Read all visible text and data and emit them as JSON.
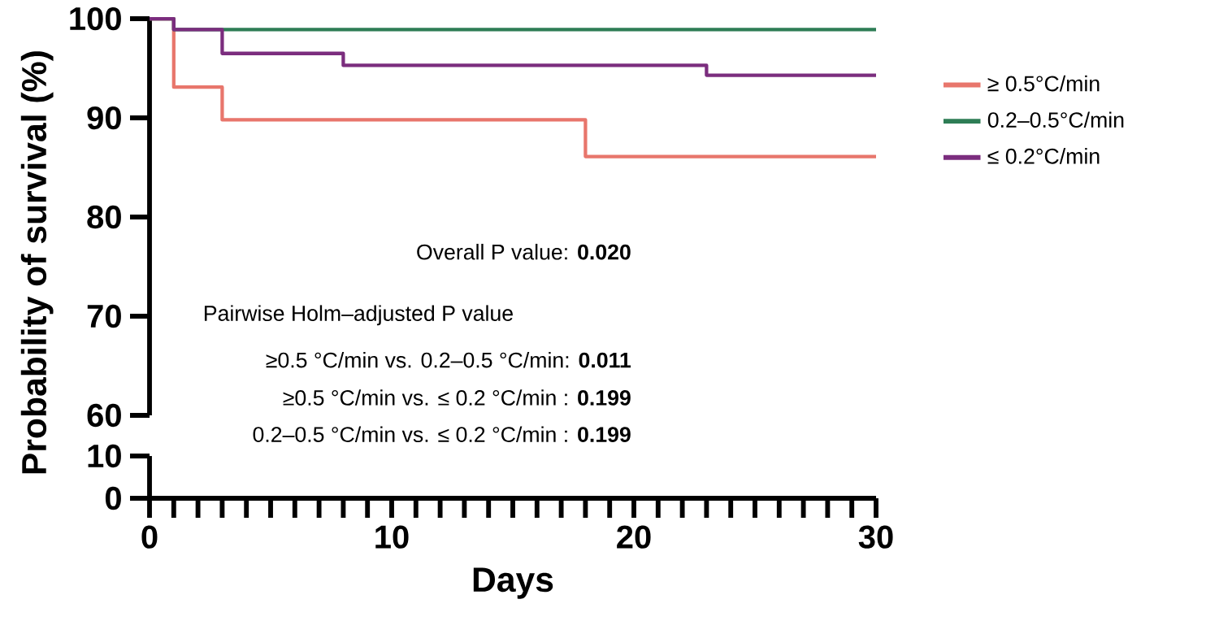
{
  "chart_data": [
    {
      "type": "step",
      "ylabel": "Probability of survival (%)",
      "xlim": [
        0,
        30
      ],
      "ylim": [
        60,
        100
      ],
      "yticks": [
        60,
        70,
        80,
        90,
        100
      ],
      "tick_labels": "y",
      "legend": "right",
      "line_style": "solid",
      "series": [
        {
          "name": "≥ 0.5°C/min",
          "color": "#e8766c",
          "x": [
            0,
            1,
            3,
            18,
            30
          ],
          "values": [
            100,
            93.1,
            89.8,
            86.1,
            86.1
          ]
        },
        {
          "name": "0.2–0.5°C/min",
          "color": "#2e7d55",
          "x": [
            0,
            1,
            30
          ],
          "values": [
            100,
            98.9,
            98.9
          ]
        },
        {
          "name": "≤ 0.2°C/min",
          "color": "#7b2d7e",
          "x": [
            0,
            1,
            3,
            8,
            23,
            30
          ],
          "values": [
            100,
            98.9,
            96.5,
            95.3,
            94.3,
            94.3
          ]
        }
      ],
      "annotations": [
        "Overall P value: **0.020**",
        "Pairwise Holm–adjusted P value",
        "≥0.5 °C/min vs. 0.2–0.5 °C/min: **0.011**",
        "≥0.5 °C/min vs.  ≤ 0.2 °C/min  : **0.199**",
        "0.2–0.5 °C/min vs.  ≤ 0.2 °C/min  : **0.199**"
      ]
    },
    {
      "type": "step",
      "xlabel": "Days",
      "xlim": [
        0,
        30
      ],
      "ylim": [
        0,
        10
      ],
      "yticks": [
        0,
        10
      ],
      "xticks": [
        0,
        {
          "value": 1,
          "label": null
        },
        {
          "value": 2,
          "label": null
        },
        {
          "value": 3,
          "label": null
        },
        {
          "value": 4,
          "label": null
        },
        {
          "value": 5,
          "label": null
        },
        {
          "value": 6,
          "label": null
        },
        {
          "value": 7,
          "label": null
        },
        {
          "value": 8,
          "label": null
        },
        {
          "value": 9,
          "label": null
        },
        10,
        {
          "value": 11,
          "label": null
        },
        {
          "value": 12,
          "label": null
        },
        {
          "value": 13,
          "label": null
        },
        {
          "value": 14,
          "label": null
        },
        {
          "value": 15,
          "label": null
        },
        {
          "value": 16,
          "label": null
        },
        {
          "value": 17,
          "label": null
        },
        {
          "value": 18,
          "label": null
        },
        {
          "value": 19,
          "label": null
        },
        20,
        {
          "value": 21,
          "label": null
        },
        {
          "value": 22,
          "label": null
        },
        {
          "value": 23,
          "label": null
        },
        {
          "value": 24,
          "label": null
        },
        {
          "value": 25,
          "label": null
        },
        {
          "value": 26,
          "label": null
        },
        {
          "value": 27,
          "label": null
        },
        {
          "value": 28,
          "label": null
        },
        {
          "value": 29,
          "label": null
        },
        30
      ]
    }
  ]
}
